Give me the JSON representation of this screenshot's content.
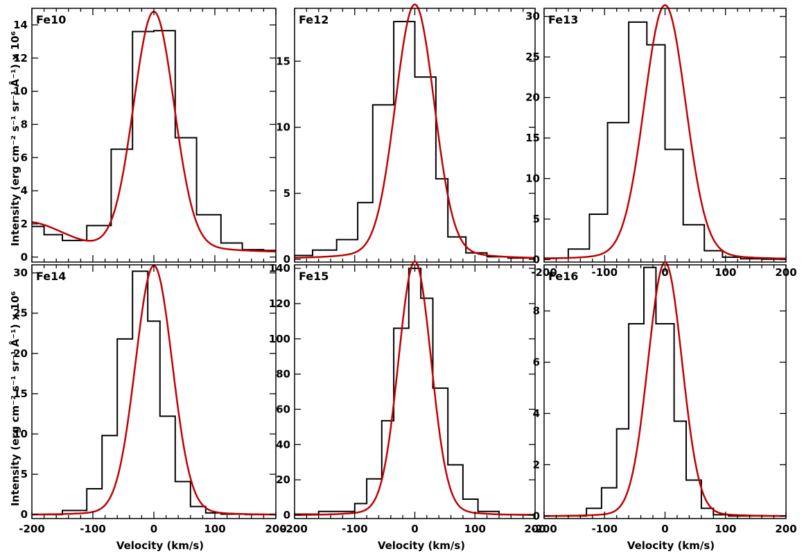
{
  "figure": {
    "ylabel": "Intensity (erg cm⁻² s⁻¹ sr⁻¹ Å⁻¹) x 10⁶",
    "xlabel": "Velocity (km/s)",
    "hist_color": "#000000",
    "fit_color": "#c00000"
  },
  "chart_data": [
    {
      "type": "line",
      "title": "Fe10",
      "xlim": [
        -200,
        200
      ],
      "ylim": [
        -0.3,
        15.0
      ],
      "yticks": [
        0,
        2,
        4,
        6,
        8,
        10,
        12,
        14
      ],
      "xticks": [
        -200,
        -100,
        0,
        100,
        200
      ],
      "xtick_labels": [
        "",
        "",
        "",
        "",
        ""
      ],
      "hist_edges": [
        -200,
        -180,
        -150,
        -110,
        -70,
        -35,
        0,
        35,
        70,
        110,
        145,
        180,
        200
      ],
      "hist_values": [
        1.85,
        1.35,
        1.0,
        1.9,
        6.5,
        13.6,
        13.65,
        7.2,
        2.55,
        0.85,
        0.45,
        0.4
      ],
      "fit": {
        "amp": 14.1,
        "center": 0,
        "sigma": 33,
        "bg_amp": 1.8,
        "bg_center": -210,
        "bg_sigma": 60,
        "base": 0.3,
        "tail_amp": 0.4,
        "tail_sigma": 90
      }
    },
    {
      "type": "line",
      "title": "Fe12",
      "xlim": [
        -200,
        200
      ],
      "ylim": [
        -0.2,
        19.0
      ],
      "yticks": [
        0,
        5,
        10,
        15
      ],
      "xticks": [
        -200,
        -100,
        0,
        100,
        200
      ],
      "xtick_labels": [
        "",
        "",
        "",
        "",
        ""
      ],
      "hist_edges": [
        -200,
        -170,
        -130,
        -95,
        -70,
        -35,
        0,
        35,
        55,
        85,
        120,
        155,
        200
      ],
      "hist_values": [
        0.3,
        0.7,
        1.5,
        4.3,
        11.7,
        18.0,
        13.8,
        6.1,
        1.7,
        0.5,
        0.2,
        0.1
      ],
      "fit": {
        "amp": 18.6,
        "center": 0,
        "sigma": 32,
        "bg_amp": 0,
        "bg_center": 0,
        "bg_sigma": 1,
        "base": 0.1,
        "tail_amp": 0.6,
        "tail_sigma": 80
      }
    },
    {
      "type": "line",
      "title": "Fe13",
      "xlim": [
        -200,
        200
      ],
      "ylim": [
        -0.3,
        31.0
      ],
      "yticks": [
        0,
        5,
        10,
        15,
        20,
        25,
        30
      ],
      "xticks": [
        -200,
        -100,
        0,
        100,
        200
      ],
      "xtick_labels": [
        "-200",
        "-100",
        "0",
        "100",
        "200"
      ],
      "hist_edges": [
        -200,
        -160,
        -125,
        -95,
        -60,
        -30,
        0,
        30,
        65,
        95,
        125,
        160,
        200
      ],
      "hist_values": [
        0.2,
        1.3,
        5.6,
        16.9,
        29.3,
        26.5,
        13.6,
        4.3,
        1.1,
        0.3,
        0.1,
        0.05
      ],
      "fit": {
        "amp": 30.5,
        "center": 0,
        "sigma": 34,
        "bg_amp": 0,
        "bg_center": 0,
        "bg_sigma": 1,
        "base": 0.1,
        "tail_amp": 0.8,
        "tail_sigma": 80
      }
    },
    {
      "type": "line",
      "title": "Fe14",
      "xlim": [
        -200,
        200
      ],
      "ylim": [
        -0.5,
        31.0
      ],
      "yticks": [
        0,
        5,
        10,
        15,
        20,
        25,
        30
      ],
      "xticks": [
        -200,
        -100,
        0,
        100,
        200
      ],
      "xtick_labels": [
        "-200",
        "-100",
        "0",
        "100",
        "200"
      ],
      "hist_edges": [
        -200,
        -150,
        -110,
        -85,
        -60,
        -35,
        -10,
        10,
        35,
        60,
        85,
        110,
        150,
        200
      ],
      "hist_values": [
        0.0,
        0.5,
        3.2,
        9.8,
        21.8,
        30.2,
        24.0,
        12.2,
        4.1,
        1.0,
        0.2,
        0.05,
        0.0
      ],
      "fit": {
        "amp": 30.3,
        "center": 0,
        "sigma": 30,
        "bg_amp": 0,
        "bg_center": 0,
        "bg_sigma": 1,
        "base": 0.0,
        "tail_amp": 0.6,
        "tail_sigma": 70
      }
    },
    {
      "type": "line",
      "title": "Fe15",
      "xlim": [
        -200,
        200
      ],
      "ylim": [
        -2,
        142
      ],
      "yticks": [
        0,
        20,
        40,
        60,
        80,
        100,
        120,
        140
      ],
      "xticks": [
        -200,
        -100,
        0,
        100,
        200
      ],
      "xtick_labels": [
        "-200",
        "-100",
        "0",
        "100",
        "200"
      ],
      "hist_edges": [
        -200,
        -160,
        -100,
        -80,
        -55,
        -35,
        -10,
        10,
        30,
        55,
        80,
        105,
        140,
        200
      ],
      "hist_values": [
        0.5,
        2,
        6.5,
        20.5,
        53.5,
        106,
        140,
        123,
        72,
        28.5,
        9,
        2,
        0.3
      ],
      "fit": {
        "amp": 141,
        "center": 0,
        "sigma": 27,
        "bg_amp": 0,
        "bg_center": 0,
        "bg_sigma": 1,
        "base": 0.0,
        "tail_amp": 3,
        "tail_sigma": 70
      }
    },
    {
      "type": "line",
      "title": "Fe16",
      "xlim": [
        -200,
        200
      ],
      "ylim": [
        -0.1,
        9.8
      ],
      "yticks": [
        0,
        2,
        4,
        6,
        8
      ],
      "xticks": [
        -200,
        -100,
        0,
        100,
        200
      ],
      "xtick_labels": [
        "-200",
        "-100",
        "0",
        "100",
        "200"
      ],
      "hist_edges": [
        -200,
        -130,
        -105,
        -80,
        -60,
        -35,
        -15,
        15,
        35,
        60,
        80,
        105,
        135,
        200
      ],
      "hist_values": [
        0.0,
        0.3,
        1.1,
        3.4,
        7.5,
        9.7,
        7.5,
        3.7,
        1.4,
        0.3,
        0.05,
        0.0,
        0.0
      ],
      "fit": {
        "amp": 9.75,
        "center": 0,
        "sigma": 28,
        "bg_amp": 0,
        "bg_center": 0,
        "bg_sigma": 1,
        "base": 0.0,
        "tail_amp": 0.15,
        "tail_sigma": 70
      }
    }
  ]
}
